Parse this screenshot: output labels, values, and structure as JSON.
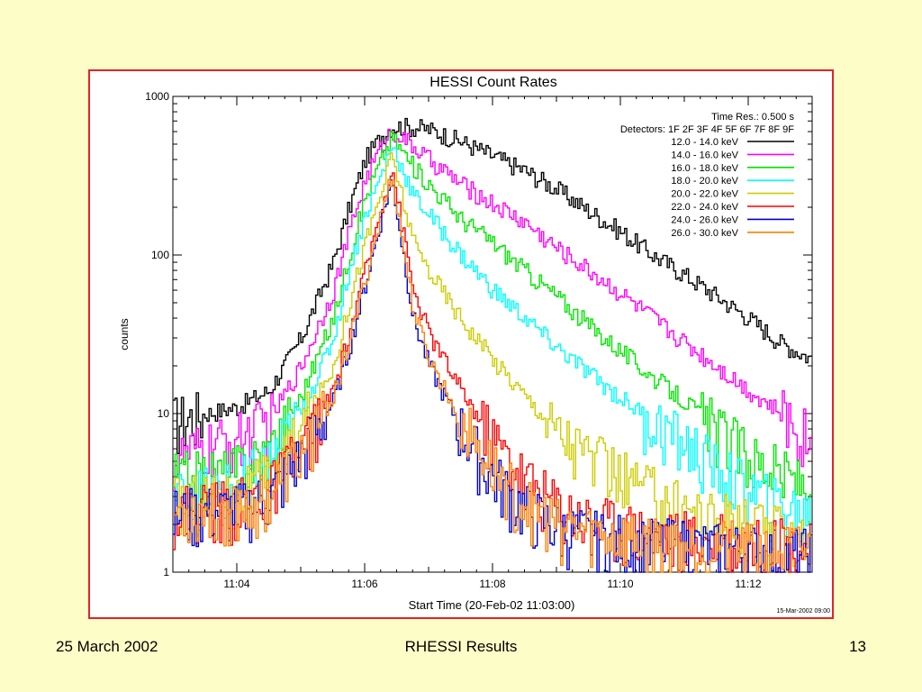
{
  "colors": {
    "background": "#fdfdc8",
    "frame": "#e0242c"
  },
  "footer": {
    "date": "25 March 2002",
    "title": "RHESSI Results",
    "page": "13"
  },
  "chart_data": {
    "type": "line",
    "title": "HESSI Count Rates",
    "xlabel": "Start Time (20-Feb-02 11:03:00)",
    "ylabel": "counts",
    "y_scale": "log",
    "ylim": [
      1,
      1000
    ],
    "xlim": [
      "11:03:00",
      "11:13:00"
    ],
    "x_ticks": [
      "11:04",
      "11:06",
      "11:08",
      "11:10",
      "11:12"
    ],
    "y_ticks": [
      "1",
      "10",
      "100",
      "1000"
    ],
    "info": [
      "Time Res.: 0.500 s",
      "Detectors: 1F 2F 3F 4F 5F 6F 7F 8F 9F"
    ],
    "timestamp": "15-Mar-2002 09:00",
    "legend_position": "top-right",
    "grid": false,
    "x": [
      "11:03:00",
      "11:03:30",
      "11:04:00",
      "11:04:30",
      "11:05:00",
      "11:05:30",
      "11:05:45",
      "11:06:00",
      "11:06:15",
      "11:06:25",
      "11:06:45",
      "11:07:00",
      "11:07:30",
      "11:08:00",
      "11:08:30",
      "11:09:00",
      "11:09:30",
      "11:10:00",
      "11:10:30",
      "11:11:00",
      "11:11:30",
      "11:12:00",
      "11:12:30",
      "11:13:00"
    ],
    "series": [
      {
        "name": "12.0 - 14.0 keV",
        "color": "#000000",
        "values": [
          9,
          10,
          11,
          14,
          30,
          90,
          200,
          400,
          560,
          650,
          640,
          620,
          520,
          420,
          340,
          260,
          190,
          140,
          100,
          75,
          55,
          40,
          28,
          22
        ]
      },
      {
        "name": "14.0 - 16.0 keV",
        "color": "#ff00ff",
        "values": [
          5,
          6,
          7,
          9,
          20,
          60,
          140,
          300,
          480,
          620,
          480,
          400,
          280,
          210,
          160,
          110,
          80,
          57,
          40,
          28,
          20,
          14,
          10,
          7
        ]
      },
      {
        "name": "16.0 - 18.0 keV",
        "color": "#00e600",
        "values": [
          4,
          4,
          4.5,
          6,
          13,
          40,
          100,
          230,
          400,
          560,
          360,
          280,
          170,
          120,
          80,
          55,
          36,
          25,
          17,
          12,
          8,
          5.5,
          4.2,
          3.5
        ]
      },
      {
        "name": "18.0 - 20.0 keV",
        "color": "#00ffff",
        "values": [
          3,
          3.2,
          3.5,
          5,
          10,
          30,
          80,
          180,
          320,
          500,
          240,
          180,
          100,
          60,
          40,
          26,
          18,
          12.5,
          9,
          6.5,
          4.5,
          3.3,
          2.6,
          2.3
        ]
      },
      {
        "name": "20.0 - 22.0 keV",
        "color": "#cccc00",
        "values": [
          2.8,
          3,
          3,
          4,
          8,
          20,
          50,
          120,
          250,
          430,
          120,
          80,
          40,
          22,
          13,
          8,
          5.5,
          4,
          3.2,
          2.6,
          2.2,
          2,
          1.8,
          1.7
        ]
      },
      {
        "name": "22.0 - 24.0 keV",
        "color": "#ff0000",
        "values": [
          2.5,
          2.6,
          2.7,
          3.3,
          6,
          14,
          32,
          80,
          200,
          360,
          60,
          32,
          14,
          7,
          4,
          2.7,
          2.2,
          2,
          1.8,
          1.7,
          1.6,
          1.5,
          1.5,
          1.4
        ]
      },
      {
        "name": "24.0 - 26.0 keV",
        "color": "#0000cc",
        "values": [
          2.3,
          2.4,
          2.5,
          3,
          5.5,
          12,
          26,
          65,
          170,
          300,
          40,
          20,
          8,
          4,
          2.5,
          1.9,
          1.7,
          1.6,
          1.5,
          1.5,
          1.4,
          1.4,
          1.3,
          1.3
        ]
      },
      {
        "name": "26.0 - 30.0 keV",
        "color": "#ff8000",
        "values": [
          2.4,
          2.5,
          2.6,
          3.1,
          5.8,
          13,
          28,
          70,
          180,
          320,
          45,
          22,
          9,
          4.5,
          2.7,
          2,
          1.8,
          1.7,
          1.6,
          1.5,
          1.5,
          1.4,
          1.4,
          1.4
        ]
      }
    ]
  }
}
